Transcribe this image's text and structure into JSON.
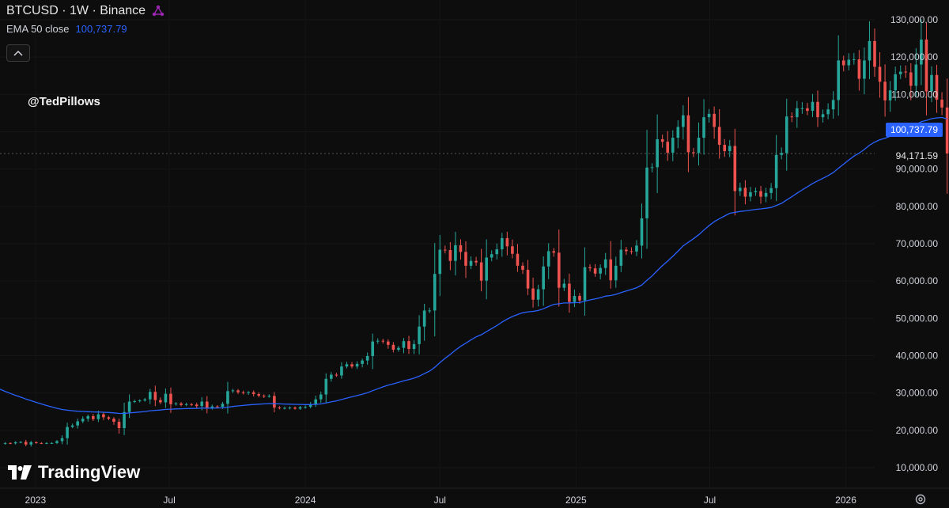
{
  "header": {
    "symbol_line": "BTCUSD · 1W · Binance",
    "indicator_label": "EMA 50 close",
    "indicator_value": "100,737.79",
    "collapse_icon": "chevron-up-icon"
  },
  "watermark": "@TedPillows",
  "logo_text": "TradingView",
  "badges": {
    "ema": "100,737.79",
    "last": "94,171.59"
  },
  "colors": {
    "up": "#26a69a",
    "down": "#ef5350",
    "ema": "#2962ff",
    "background": "#0d0d0d"
  },
  "chart_data": {
    "type": "candlestick",
    "title": "BTCUSD · 1W · Binance",
    "ylim": [
      5000,
      135000
    ],
    "y_ticks": [
      10000,
      20000,
      30000,
      40000,
      50000,
      60000,
      70000,
      80000,
      90000,
      100000,
      110000,
      120000,
      130000
    ],
    "y_tick_labels": [
      "10,000.00",
      "20,000.00",
      "30,000.00",
      "40,000.00",
      "50,000.00",
      "60,000.00",
      "70,000.00",
      "80,000.00",
      "90,000.00",
      "",
      "110,000.00",
      "120,000.00",
      "130,000.00"
    ],
    "x_start": "2022-11-14",
    "x_end": "2026-02-09",
    "x_ticks": [
      {
        "date": "2023-01-01",
        "label": "2023"
      },
      {
        "date": "2023-07-01",
        "label": "Jul"
      },
      {
        "date": "2024-01-01",
        "label": "2024"
      },
      {
        "date": "2024-07-01",
        "label": "Jul"
      },
      {
        "date": "2025-01-01",
        "label": "2025"
      },
      {
        "date": "2025-07-01",
        "label": "Jul"
      },
      {
        "date": "2026-01-01",
        "label": "2026"
      }
    ],
    "close": [
      16600,
      16500,
      16800,
      16900,
      16200,
      16800,
      16600,
      16500,
      16600,
      16600,
      17100,
      17900,
      20900,
      21300,
      22400,
      23100,
      23800,
      23000,
      24300,
      23500,
      23100,
      22300,
      20600,
      24900,
      27700,
      27800,
      28000,
      28300,
      30300,
      28100,
      27500,
      29800,
      27000,
      27200,
      26800,
      27000,
      26900,
      26500,
      27700,
      25900,
      26400,
      26300,
      27100,
      30500,
      30700,
      30200,
      30000,
      30200,
      29700,
      29300,
      29100,
      29200,
      26100,
      26000,
      26000,
      26100,
      25800,
      26200,
      26300,
      26900,
      28300,
      29600,
      33800,
      34900,
      34700,
      37100,
      37700,
      37100,
      37800,
      38700,
      39900,
      43800,
      44000,
      43800,
      42900,
      41600,
      42100,
      43900,
      41800,
      43100,
      47800,
      52100,
      52100,
      61900,
      68400,
      68300,
      65400,
      69600,
      67800,
      64100,
      65400,
      65000,
      60100,
      66300,
      67200,
      68500,
      71500,
      69300,
      67300,
      64100,
      63000,
      58000,
      55000,
      57800,
      63900,
      68000,
      67600,
      58200,
      59300,
      54400,
      56000,
      54800,
      63700,
      63400,
      62000,
      63500,
      65800,
      60200,
      64100,
      68400,
      68000,
      67900,
      69500,
      76800,
      90400,
      90500,
      98000,
      97300,
      94400,
      98400,
      101300,
      104400,
      94500,
      94300,
      98400,
      103900,
      104800,
      101300,
      96500,
      94800,
      96200,
      84100,
      85000,
      82600,
      83800,
      84100,
      82600,
      83600,
      84900,
      93800,
      94300,
      104100,
      103900,
      106300,
      106300,
      105600,
      108000,
      103900,
      104700,
      106000,
      108500,
      119100,
      117800,
      119300,
      119400,
      114200,
      119100,
      124300,
      117400,
      113400,
      108400,
      111100,
      115400,
      116100,
      115900,
      112300,
      118000,
      124700,
      110800,
      115200,
      108600,
      106500,
      94171.59
    ],
    "ema50_close_last": 100737.79
  }
}
